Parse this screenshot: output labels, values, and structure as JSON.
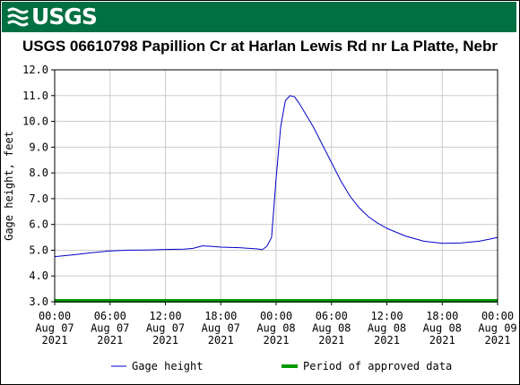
{
  "header": {
    "logo_text": "USGS",
    "brand_color": "#006f41"
  },
  "chart_data": {
    "type": "line",
    "title": "USGS 06610798 Papillion Cr at Harlan Lewis Rd nr La Platte, Nebr",
    "ylabel": "Gage height, feet",
    "xlabel": "",
    "ylim": [
      3.0,
      12.0
    ],
    "xlim": [
      "2021-08-07 00:00",
      "2021-08-09 00:00"
    ],
    "grid": true,
    "y_ticks": [
      "3.0",
      "4.0",
      "5.0",
      "6.0",
      "7.0",
      "8.0",
      "9.0",
      "10.0",
      "11.0",
      "12.0"
    ],
    "x_ticks": [
      {
        "t": "2021-08-07 00:00",
        "lines": [
          "00:00",
          "Aug 07",
          "2021"
        ]
      },
      {
        "t": "2021-08-07 06:00",
        "lines": [
          "06:00",
          "Aug 07",
          "2021"
        ]
      },
      {
        "t": "2021-08-07 12:00",
        "lines": [
          "12:00",
          "Aug 07",
          "2021"
        ]
      },
      {
        "t": "2021-08-07 18:00",
        "lines": [
          "18:00",
          "Aug 07",
          "2021"
        ]
      },
      {
        "t": "2021-08-08 00:00",
        "lines": [
          "00:00",
          "Aug 08",
          "2021"
        ]
      },
      {
        "t": "2021-08-08 06:00",
        "lines": [
          "06:00",
          "Aug 08",
          "2021"
        ]
      },
      {
        "t": "2021-08-08 12:00",
        "lines": [
          "12:00",
          "Aug 08",
          "2021"
        ]
      },
      {
        "t": "2021-08-08 18:00",
        "lines": [
          "18:00",
          "Aug 08",
          "2021"
        ]
      },
      {
        "t": "2021-08-09 00:00",
        "lines": [
          "00:00",
          "Aug 09",
          "2021"
        ]
      }
    ],
    "series": [
      {
        "name": "Gage height",
        "color": "#0000cc",
        "x": [
          "2021-08-07 00:00",
          "2021-08-07 02:00",
          "2021-08-07 04:00",
          "2021-08-07 06:00",
          "2021-08-07 08:00",
          "2021-08-07 10:00",
          "2021-08-07 12:00",
          "2021-08-07 14:00",
          "2021-08-07 15:00",
          "2021-08-07 16:00",
          "2021-08-07 17:00",
          "2021-08-07 18:00",
          "2021-08-07 20:00",
          "2021-08-07 22:00",
          "2021-08-07 22:30",
          "2021-08-07 23:00",
          "2021-08-07 23:30",
          "2021-08-08 00:00",
          "2021-08-08 00:30",
          "2021-08-08 01:00",
          "2021-08-08 01:30",
          "2021-08-08 02:00",
          "2021-08-08 02:30",
          "2021-08-08 03:00",
          "2021-08-08 04:00",
          "2021-08-08 05:00",
          "2021-08-08 06:00",
          "2021-08-08 07:00",
          "2021-08-08 08:00",
          "2021-08-08 09:00",
          "2021-08-08 10:00",
          "2021-08-08 11:00",
          "2021-08-08 12:00",
          "2021-08-08 14:00",
          "2021-08-08 16:00",
          "2021-08-08 18:00",
          "2021-08-08 20:00",
          "2021-08-08 22:00",
          "2021-08-08 23:00",
          "2021-08-09 00:00"
        ],
        "y": [
          4.75,
          4.82,
          4.9,
          4.97,
          5.0,
          5.01,
          5.03,
          5.04,
          5.07,
          5.17,
          5.15,
          5.12,
          5.1,
          5.05,
          5.02,
          5.15,
          5.5,
          7.8,
          9.8,
          10.8,
          11.0,
          10.95,
          10.7,
          10.4,
          9.8,
          9.1,
          8.4,
          7.7,
          7.1,
          6.65,
          6.3,
          6.05,
          5.85,
          5.55,
          5.35,
          5.27,
          5.28,
          5.35,
          5.42,
          5.5
        ]
      },
      {
        "name": "Period of approved data",
        "color": "#009900",
        "x": [
          "2021-08-07 00:00",
          "2021-08-09 00:00"
        ],
        "y": [
          3.0,
          3.0
        ]
      }
    ],
    "legend_placement": "bottom"
  }
}
